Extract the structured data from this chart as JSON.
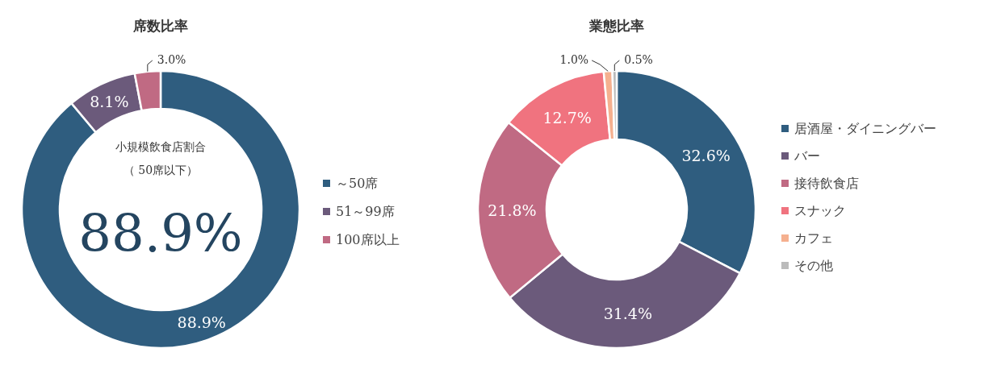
{
  "chart_data": [
    {
      "type": "donut",
      "title": "席数比率",
      "categories": [
        "～50席",
        "51～99席",
        "100席以上"
      ],
      "values": [
        88.9,
        8.1,
        3.0
      ],
      "colors": [
        "#2f5d7f",
        "#6b5a7b",
        "#c06a83"
      ],
      "value_labels": [
        "88.9%",
        "8.1%",
        "3.0%"
      ],
      "legend": "right",
      "annotations": [
        "小規模飲食店割合",
        "（ 50席以下）",
        "88.9%"
      ]
    },
    {
      "type": "donut",
      "title": "業態比率",
      "categories": [
        "居酒屋・ダイニングバー",
        "バー",
        "接待飲食店",
        "スナック",
        "カフェ",
        "その他"
      ],
      "values": [
        32.6,
        31.4,
        21.8,
        12.7,
        1.0,
        0.5
      ],
      "colors": [
        "#2f5d7f",
        "#6b5a7b",
        "#c06a83",
        "#f0737f",
        "#f5b08f",
        "#bbbbbb"
      ],
      "value_labels": [
        "32.6%",
        "31.4%",
        "21.8%",
        "12.7%",
        "1.0%",
        "0.5%"
      ],
      "legend": "right"
    }
  ]
}
